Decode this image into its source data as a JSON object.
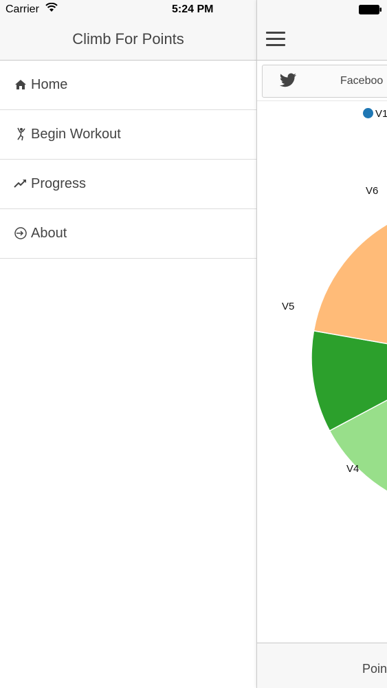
{
  "status_bar": {
    "carrier": "Carrier",
    "time": "5:24 PM",
    "icons": [
      "wifi-icon",
      "battery-icon"
    ]
  },
  "menu": {
    "title": "Climb For Points",
    "items": [
      {
        "label": "Home",
        "icon": "home-icon"
      },
      {
        "label": "Begin Workout",
        "icon": "climber-icon"
      },
      {
        "label": "Progress",
        "icon": "trending-up-icon"
      },
      {
        "label": "About",
        "icon": "sign-in-icon"
      }
    ]
  },
  "content": {
    "menu_icon": "hamburger-icon",
    "share": {
      "twitter_icon": "twitter-icon",
      "facebook_label": "Faceboo"
    },
    "footer_label": "Poin"
  },
  "chart_data": {
    "type": "pie",
    "legend": [
      {
        "label": "V1",
        "color": "#1f77b4"
      }
    ],
    "slices": [
      {
        "label": "V6",
        "color": "#98df8a"
      },
      {
        "label": "V5",
        "color": "#2ca02c"
      },
      {
        "label": "V4",
        "color": "#ffbb78"
      }
    ],
    "legend_placement": "top"
  },
  "colors": {
    "header_bg": "#f7f7f7",
    "text": "#444444"
  }
}
